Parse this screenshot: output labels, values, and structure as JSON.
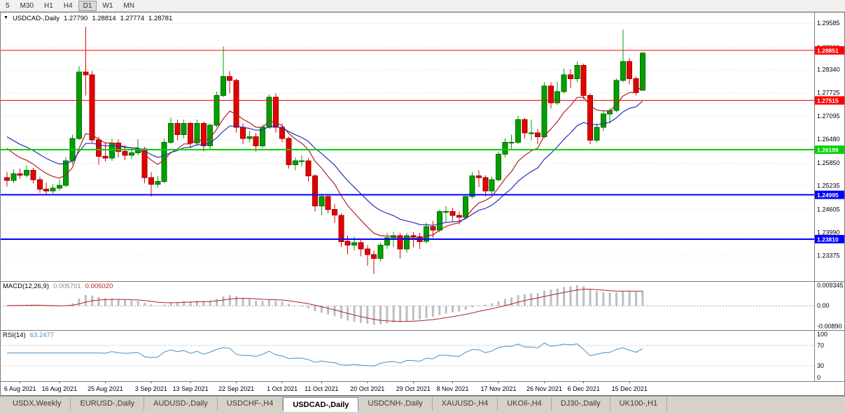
{
  "toolbar": {
    "timeframes": [
      {
        "label": "5",
        "active": false
      },
      {
        "label": "M30",
        "active": false
      },
      {
        "label": "H1",
        "active": false
      },
      {
        "label": "H4",
        "active": false
      },
      {
        "label": "D1",
        "active": true
      },
      {
        "label": "W1",
        "active": false
      },
      {
        "label": "MN",
        "active": false
      }
    ]
  },
  "chart_header": {
    "marker": "▼",
    "symbol": "USDCAD-,Daily",
    "open": "1.27790",
    "high": "1.28814",
    "low": "1.27774",
    "close": "1.28781"
  },
  "tabs": {
    "items": [
      {
        "label": "USDX,Weekly",
        "active": false
      },
      {
        "label": "EURUSD-,Daily",
        "active": false
      },
      {
        "label": "AUDUSD-,Daily",
        "active": false
      },
      {
        "label": "USDCHF-,H4",
        "active": false
      },
      {
        "label": "USDCAD-,Daily",
        "active": true
      },
      {
        "label": "USDCNH-,Daily",
        "active": false
      },
      {
        "label": "XAUUSD-,H4",
        "active": false
      },
      {
        "label": "UKOil-,H4",
        "active": false
      },
      {
        "label": "DJ30-,Daily",
        "active": false
      },
      {
        "label": "UK100-,H1",
        "active": false
      }
    ]
  },
  "colors": {
    "candle_up": "#00A000",
    "candle_up_border": "#006A00",
    "candle_down": "#E60000",
    "candle_down_border": "#990000",
    "grid": "#DCDCDC",
    "frame": "#7C7C7C",
    "axis_text": "#000000"
  },
  "chart_data": {
    "type": "candlestick",
    "title": "USDCAD-,Daily",
    "symbol": "USDCAD-",
    "timeframe": "Daily",
    "last_ohlc": {
      "open": 1.2779,
      "high": 1.28814,
      "low": 1.27774,
      "close": 1.28781
    },
    "ylim": [
      1.2269,
      1.2988
    ],
    "price_axis_labels": [
      "1.29585",
      "1.28930",
      "1.28340",
      "1.27725",
      "1.27095",
      "1.26480",
      "1.25850",
      "1.25235",
      "1.24605",
      "1.23990",
      "1.23375"
    ],
    "levels": [
      {
        "price": 1.28851,
        "label": "1.28851",
        "color": "#FF0000",
        "line_width": 1
      },
      {
        "price": 1.27515,
        "label": "1.27515",
        "color": "#FF0000",
        "line_width": 1
      },
      {
        "price": 1.26199,
        "label": "1.26199",
        "color": "#00D000",
        "line_width": 2
      },
      {
        "price": 1.24995,
        "label": "1.24995",
        "color": "#0000FF",
        "line_width": 2
      },
      {
        "price": 1.2381,
        "label": "1.23810",
        "color": "#0000FF",
        "line_width": 2
      }
    ],
    "moving_averages": [
      {
        "name": "ma-fast",
        "color": "#B22222",
        "period": 9,
        "seed": 1.2645
      },
      {
        "name": "ma-slow",
        "color": "#2830B8",
        "period": 18,
        "seed": 1.2668
      }
    ],
    "indicators": {
      "macd": {
        "label": "MACD(12,26,9)",
        "main_value": "0.005701",
        "signal_value": "0.005020",
        "scale": 0.0097,
        "histogram_color": "#BEBEBE",
        "signal_color": "#B22222",
        "axis_labels": [
          {
            "label": "0.009345",
            "value": 0.009345
          },
          {
            "label": "0.00",
            "value": 0
          },
          {
            "label": "-0.00890",
            "value": -0.0089
          }
        ]
      },
      "rsi": {
        "label": "RSI(14)",
        "value": "63.2477",
        "period": 14,
        "color": "#4C8FBF",
        "levels": [
          70,
          30
        ],
        "axis_labels": [
          {
            "label": "100",
            "value": 100
          },
          {
            "label": "70",
            "value": 70
          },
          {
            "label": "30",
            "value": 30
          },
          {
            "label": "0",
            "value": 0
          }
        ]
      }
    },
    "date_ticks": [
      {
        "label": "6 Aug 2021",
        "index": 2
      },
      {
        "label": "16 Aug 2021",
        "index": 8
      },
      {
        "label": "25 Aug 2021",
        "index": 15
      },
      {
        "label": "3 Sep 2021",
        "index": 22
      },
      {
        "label": "13 Sep 2021",
        "index": 28
      },
      {
        "label": "22 Sep 2021",
        "index": 35
      },
      {
        "label": "1 Oct 2021",
        "index": 42
      },
      {
        "label": "11 Oct 2021",
        "index": 48
      },
      {
        "label": "20 Oct 2021",
        "index": 55
      },
      {
        "label": "29 Oct 2021",
        "index": 62
      },
      {
        "label": "8 Nov 2021",
        "index": 68
      },
      {
        "label": "17 Nov 2021",
        "index": 75
      },
      {
        "label": "26 Nov 2021",
        "index": 82
      },
      {
        "label": "6 Dec 2021",
        "index": 88
      },
      {
        "label": "15 Dec 2021",
        "index": 95
      }
    ],
    "candles": [
      [
        1.2545,
        1.256,
        1.2522,
        1.2538
      ],
      [
        1.2538,
        1.2568,
        1.253,
        1.2556
      ],
      [
        1.2556,
        1.257,
        1.2543,
        1.2552
      ],
      [
        1.2552,
        1.2578,
        1.2545,
        1.2565
      ],
      [
        1.2565,
        1.2572,
        1.253,
        1.254
      ],
      [
        1.254,
        1.2548,
        1.2505,
        1.2515
      ],
      [
        1.2515,
        1.2532,
        1.25,
        1.251
      ],
      [
        1.251,
        1.2528,
        1.2502,
        1.2517
      ],
      [
        1.2517,
        1.254,
        1.251,
        1.2525
      ],
      [
        1.2525,
        1.26,
        1.252,
        1.259
      ],
      [
        1.259,
        1.266,
        1.258,
        1.265
      ],
      [
        1.265,
        1.2843,
        1.2645,
        1.2827
      ],
      [
        1.2827,
        1.2948,
        1.2765,
        1.282
      ],
      [
        1.282,
        1.283,
        1.264,
        1.2646
      ],
      [
        1.2646,
        1.2655,
        1.258,
        1.2602
      ],
      [
        1.2602,
        1.264,
        1.2588,
        1.2598
      ],
      [
        1.2598,
        1.265,
        1.259,
        1.2638
      ],
      [
        1.2638,
        1.2648,
        1.26,
        1.2615
      ],
      [
        1.2615,
        1.2632,
        1.2592,
        1.2605
      ],
      [
        1.2605,
        1.2625,
        1.2595,
        1.2612
      ],
      [
        1.2612,
        1.2648,
        1.2605,
        1.2622
      ],
      [
        1.2622,
        1.2628,
        1.253,
        1.2545
      ],
      [
        1.2545,
        1.256,
        1.2495,
        1.2528
      ],
      [
        1.2528,
        1.255,
        1.2518,
        1.2535
      ],
      [
        1.2535,
        1.265,
        1.253,
        1.264
      ],
      [
        1.264,
        1.2705,
        1.2635,
        1.269
      ],
      [
        1.269,
        1.27,
        1.2645,
        1.266
      ],
      [
        1.266,
        1.27,
        1.265,
        1.269
      ],
      [
        1.269,
        1.2695,
        1.2625,
        1.2638
      ],
      [
        1.2638,
        1.27,
        1.263,
        1.269
      ],
      [
        1.269,
        1.2695,
        1.2615,
        1.263
      ],
      [
        1.263,
        1.269,
        1.2618,
        1.2685
      ],
      [
        1.2685,
        1.2775,
        1.268,
        1.2765
      ],
      [
        1.2765,
        1.2896,
        1.276,
        1.2815
      ],
      [
        1.2815,
        1.283,
        1.277,
        1.2805
      ],
      [
        1.2805,
        1.281,
        1.2665,
        1.268
      ],
      [
        1.268,
        1.269,
        1.2635,
        1.265
      ],
      [
        1.265,
        1.267,
        1.264,
        1.2655
      ],
      [
        1.2655,
        1.2665,
        1.2615,
        1.263
      ],
      [
        1.263,
        1.2688,
        1.2625,
        1.268
      ],
      [
        1.268,
        1.2768,
        1.2675,
        1.276
      ],
      [
        1.276,
        1.277,
        1.2665,
        1.268
      ],
      [
        1.268,
        1.269,
        1.264,
        1.265
      ],
      [
        1.265,
        1.2655,
        1.257,
        1.258
      ],
      [
        1.258,
        1.26,
        1.2565,
        1.259
      ],
      [
        1.259,
        1.2605,
        1.2575,
        1.259
      ],
      [
        1.259,
        1.2598,
        1.2535,
        1.255
      ],
      [
        1.255,
        1.2555,
        1.2455,
        1.247
      ],
      [
        1.247,
        1.2502,
        1.2445,
        1.2495
      ],
      [
        1.2495,
        1.25,
        1.245,
        1.246
      ],
      [
        1.246,
        1.2475,
        1.2425,
        1.2445
      ],
      [
        1.2445,
        1.245,
        1.236,
        1.2375
      ],
      [
        1.2375,
        1.239,
        1.234,
        1.2365
      ],
      [
        1.2365,
        1.2388,
        1.235,
        1.2372
      ],
      [
        1.2372,
        1.238,
        1.2335,
        1.2355
      ],
      [
        1.2355,
        1.2365,
        1.231,
        1.234
      ],
      [
        1.234,
        1.235,
        1.2288,
        1.233
      ],
      [
        1.233,
        1.2372,
        1.232,
        1.2365
      ],
      [
        1.2365,
        1.2398,
        1.2355,
        1.2385
      ],
      [
        1.2385,
        1.24,
        1.236,
        1.239
      ],
      [
        1.239,
        1.2398,
        1.233,
        1.2355
      ],
      [
        1.2355,
        1.2398,
        1.2345,
        1.239
      ],
      [
        1.239,
        1.24,
        1.236,
        1.2388
      ],
      [
        1.2388,
        1.2398,
        1.2355,
        1.2375
      ],
      [
        1.2375,
        1.2425,
        1.237,
        1.2415
      ],
      [
        1.2415,
        1.243,
        1.2385,
        1.2405
      ],
      [
        1.2405,
        1.246,
        1.24,
        1.2455
      ],
      [
        1.2455,
        1.247,
        1.2425,
        1.2455
      ],
      [
        1.2455,
        1.2465,
        1.243,
        1.2445
      ],
      [
        1.2445,
        1.2455,
        1.242,
        1.244
      ],
      [
        1.244,
        1.25,
        1.2435,
        1.2495
      ],
      [
        1.2495,
        1.256,
        1.249,
        1.255
      ],
      [
        1.255,
        1.2565,
        1.252,
        1.2545
      ],
      [
        1.2545,
        1.2552,
        1.2495,
        1.251
      ],
      [
        1.251,
        1.2548,
        1.2502,
        1.254
      ],
      [
        1.254,
        1.2615,
        1.2535,
        1.2608
      ],
      [
        1.2608,
        1.265,
        1.26,
        1.264
      ],
      [
        1.264,
        1.266,
        1.2618,
        1.264
      ],
      [
        1.264,
        1.271,
        1.2635,
        1.27
      ],
      [
        1.27,
        1.2705,
        1.265,
        1.2665
      ],
      [
        1.2665,
        1.27,
        1.2645,
        1.2665
      ],
      [
        1.2665,
        1.2675,
        1.2635,
        1.2655
      ],
      [
        1.2655,
        1.28,
        1.265,
        1.279
      ],
      [
        1.279,
        1.28,
        1.273,
        1.2745
      ],
      [
        1.2745,
        1.28,
        1.274,
        1.2775
      ],
      [
        1.2775,
        1.2837,
        1.277,
        1.282
      ],
      [
        1.282,
        1.2835,
        1.2785,
        1.281
      ],
      [
        1.281,
        1.2855,
        1.28,
        1.2845
      ],
      [
        1.2845,
        1.285,
        1.2755,
        1.2765
      ],
      [
        1.2765,
        1.277,
        1.2635,
        1.2645
      ],
      [
        1.2645,
        1.269,
        1.264,
        1.268
      ],
      [
        1.268,
        1.2725,
        1.267,
        1.2715
      ],
      [
        1.2715,
        1.273,
        1.269,
        1.2725
      ],
      [
        1.2725,
        1.281,
        1.272,
        1.2805
      ],
      [
        1.2805,
        1.294,
        1.28,
        1.2855
      ],
      [
        1.2855,
        1.2865,
        1.2795,
        1.281
      ],
      [
        1.281,
        1.2815,
        1.2765,
        1.2772
      ],
      [
        1.2779,
        1.28814,
        1.27774,
        1.28781
      ]
    ]
  }
}
